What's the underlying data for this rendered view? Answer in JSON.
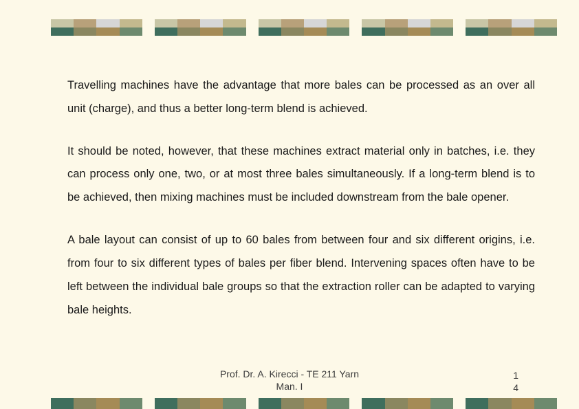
{
  "decor": {
    "background_color": "#fdf9e8",
    "stripe_colors_a": [
      "#c8c6a6",
      "#b8a17a",
      "#d6d6d6",
      "#c3b98e"
    ],
    "stripe_colors_b": [
      "#3f6e5d",
      "#8a8760",
      "#a58b56",
      "#6d8a6e"
    ],
    "block_count": 5,
    "top_band_height": 24,
    "bottom_band_height": 16
  },
  "body": {
    "text_color": "#1a1a1a",
    "fontsize": 16.5,
    "line_height": 2.05,
    "paragraphs": [
      "Travelling machines have the advantage that more bales can be processed as an over all unit (charge), and thus a better long-term blend is achieved.",
      "It should be noted, however, that these machines extract material only in batches, i.e. they can process only one, two, or at most three bales simultaneously. If a long-term blend is to be achieved, then mixing machines must be included downstream from the bale opener.",
      "A bale layout can consist of up to 60 bales from between four and six different origins, i.e. from four to six different types of bales per fiber blend. Intervening spaces often have to be left between the individual bale groups so that the extraction roller can be adapted to varying bale heights."
    ]
  },
  "footer": {
    "line1": "Prof. Dr. A. Kirecci - TE 211 Yarn",
    "line2": "Man. I",
    "page_a": "1",
    "page_b": "4"
  }
}
